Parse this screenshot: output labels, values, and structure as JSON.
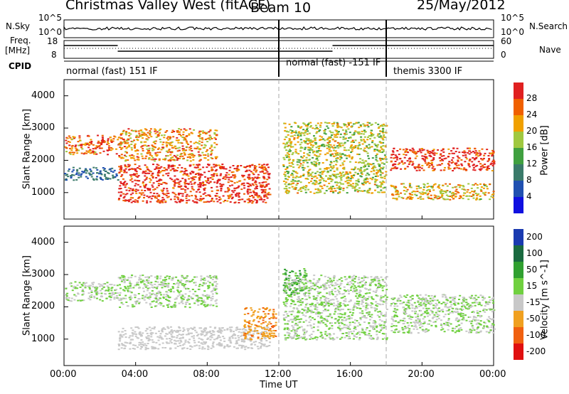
{
  "header": {
    "station": "Christmas Valley West (fitACF)",
    "beam": "Beam 10",
    "date": "25/May/2012"
  },
  "summary_panel": {
    "left_labels": {
      "nsky": "N.Sky",
      "freq": "Freq.",
      "freq_unit": "[MHz]",
      "cpid": "CPID"
    },
    "right_labels": {
      "nsearch": "N.Search",
      "nave": "Nave"
    },
    "left_ticks_top": [
      "10^5",
      "10^0"
    ],
    "right_ticks_top": [
      "10^5",
      "10^0"
    ],
    "left_ticks_freq": [
      "18",
      "8"
    ],
    "right_ticks_nave": [
      "60",
      "0"
    ],
    "cpid_segments": [
      {
        "label": "normal (fast) 151 IF",
        "start_hour": 0,
        "end_hour": 12
      },
      {
        "label": "normal (fast) -151 IF",
        "start_hour": 12,
        "end_hour": 18
      },
      {
        "label": "themis 3300 IF",
        "start_hour": 18,
        "end_hour": 24
      }
    ]
  },
  "x_axis": {
    "label": "Time UT",
    "ticks": [
      "00:00",
      "04:00",
      "08:00",
      "12:00",
      "16:00",
      "20:00",
      "00:00"
    ]
  },
  "panels": [
    {
      "ylabel": "Slant Range [km]",
      "yticks": [
        "1000",
        "2000",
        "3000",
        "4000"
      ],
      "colorbar_label": "Power [dB]",
      "colorbar_ticks": [
        "4",
        "8",
        "12",
        "16",
        "20",
        "24",
        "28"
      ],
      "colors": [
        "#1010e0",
        "#2050b0",
        "#3a7a6a",
        "#40a040",
        "#a0c840",
        "#f0a000",
        "#f06000",
        "#e02020"
      ]
    },
    {
      "ylabel": "Slant Range [km]",
      "yticks": [
        "1000",
        "2000",
        "3000",
        "4000"
      ],
      "colorbar_label": "Velocity [m s^-1]",
      "colorbar_ticks": [
        "200",
        "100",
        "50",
        "15",
        "-15",
        "-50",
        "-100",
        "-200"
      ],
      "colors": [
        "#1a3ab0",
        "#1a6a40",
        "#30a030",
        "#70d040",
        "#c8c8c8",
        "#f0a020",
        "#f06010",
        "#e01010"
      ]
    }
  ],
  "chart_data": [
    {
      "type": "heatmap",
      "title": "Power",
      "xlabel": "Time UT",
      "ylabel": "Slant Range [km]",
      "xlim_hours": [
        0,
        24
      ],
      "ylim_km": [
        180,
        4500
      ],
      "colorbar": {
        "label": "Power [dB]",
        "range": [
          0,
          30
        ]
      },
      "scatter_regions": [
        {
          "t0": 0.0,
          "t1": 3.0,
          "r0": 2200,
          "r1": 2800,
          "value": 24
        },
        {
          "t0": 0.0,
          "t1": 3.0,
          "r0": 1400,
          "r1": 1800,
          "value": 8
        },
        {
          "t0": 3.0,
          "t1": 11.5,
          "r0": 700,
          "r1": 1900,
          "value": 28
        },
        {
          "t0": 3.0,
          "t1": 8.5,
          "r0": 2000,
          "r1": 3000,
          "value": 22
        },
        {
          "t0": 12.2,
          "t1": 18.0,
          "r0": 1000,
          "r1": 3200,
          "value": 18
        },
        {
          "t0": 18.2,
          "t1": 24.0,
          "r0": 1700,
          "r1": 2400,
          "value": 28
        },
        {
          "t0": 18.2,
          "t1": 24.0,
          "r0": 800,
          "r1": 1300,
          "value": 20
        }
      ]
    },
    {
      "type": "heatmap",
      "title": "Velocity",
      "xlabel": "Time UT",
      "ylabel": "Slant Range [km]",
      "xlim_hours": [
        0,
        24
      ],
      "ylim_km": [
        180,
        4500
      ],
      "colorbar": {
        "label": "Velocity [m s^-1]",
        "range": [
          -200,
          200
        ]
      },
      "scatter_regions": [
        {
          "t0": 0.0,
          "t1": 3.0,
          "r0": 2200,
          "r1": 2800,
          "value": 0
        },
        {
          "t0": 3.0,
          "t1": 11.5,
          "r0": 700,
          "r1": 1400,
          "value": -40
        },
        {
          "t0": 3.0,
          "t1": 8.5,
          "r0": 2000,
          "r1": 3000,
          "value": 0
        },
        {
          "t0": 10.0,
          "t1": 11.8,
          "r0": 1000,
          "r1": 2000,
          "value": -90
        },
        {
          "t0": 12.2,
          "t1": 13.5,
          "r0": 2400,
          "r1": 3200,
          "value": 60
        },
        {
          "t0": 12.2,
          "t1": 18.0,
          "r0": 1000,
          "r1": 3000,
          "value": 0
        },
        {
          "t0": 18.2,
          "t1": 24.0,
          "r0": 1200,
          "r1": 2400,
          "value": 0
        }
      ]
    }
  ]
}
